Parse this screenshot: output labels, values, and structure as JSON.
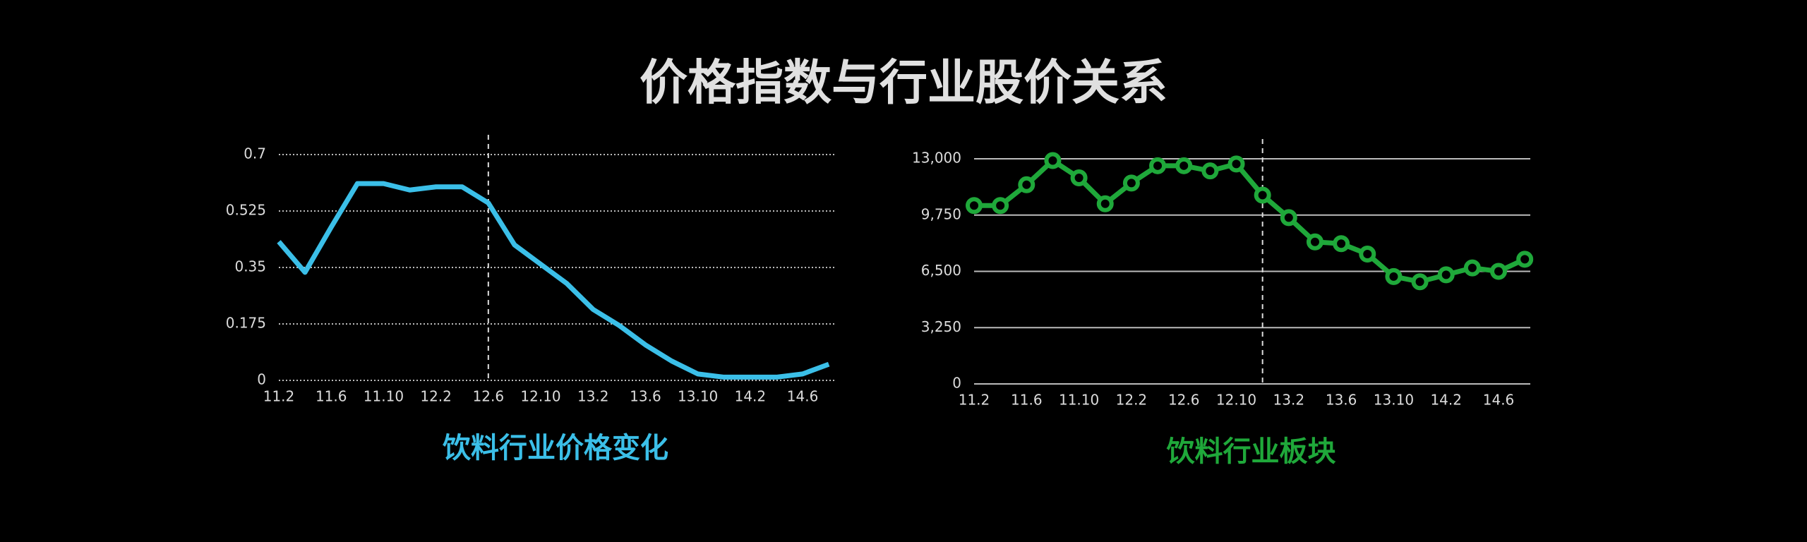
{
  "title": "价格指数与行业股价关系",
  "chart_data": [
    {
      "type": "line",
      "title": "饮料行业价格变化",
      "color": "#3bbfe8",
      "markers": false,
      "grid_style": "dotted",
      "categories": [
        "11.2",
        null,
        "11.6",
        null,
        "11.10",
        null,
        "12.2",
        null,
        "12.6",
        null,
        "12.10",
        null,
        "13.2",
        null,
        "13.6",
        null,
        "13.10",
        null,
        "14.2",
        null,
        "14.6",
        null
      ],
      "values": [
        0.43,
        0.335,
        0.475,
        0.61,
        0.61,
        0.59,
        0.6,
        0.6,
        0.55,
        0.42,
        0.36,
        0.3,
        0.22,
        0.17,
        0.11,
        0.06,
        0.02,
        0.01,
        0.01,
        0.01,
        0.02,
        0.05
      ],
      "ylim": [
        0,
        0.7
      ],
      "yticks": [
        0,
        0.175,
        0.35,
        0.525,
        0.7
      ],
      "grid": true,
      "divider_at": 8
    },
    {
      "type": "line",
      "title": "饮料行业板块",
      "color": "#1fa83a",
      "markers": true,
      "grid_style": "solid",
      "categories": [
        "11.2",
        null,
        "11.6",
        null,
        "11.10",
        null,
        "12.2",
        null,
        "12.6",
        null,
        "12.10",
        null,
        "13.2",
        null,
        "13.6",
        null,
        "13.10",
        null,
        "14.2",
        null,
        "14.6",
        null
      ],
      "values": [
        10300,
        10300,
        11500,
        12900,
        11900,
        10400,
        11600,
        12600,
        12600,
        12300,
        12700,
        10900,
        9600,
        8200,
        8100,
        7500,
        6200,
        5900,
        6300,
        6700,
        6500,
        7200
      ],
      "ylim": [
        0,
        13000
      ],
      "yticks": [
        0,
        {
          "value": 3250,
          "label": "3,250"
        },
        {
          "value": 6500,
          "label": "6,500"
        },
        {
          "value": 9750,
          "label": "9,750"
        },
        {
          "value": 13000,
          "label": "13,000"
        }
      ],
      "grid": true,
      "divider_at": 11
    }
  ]
}
